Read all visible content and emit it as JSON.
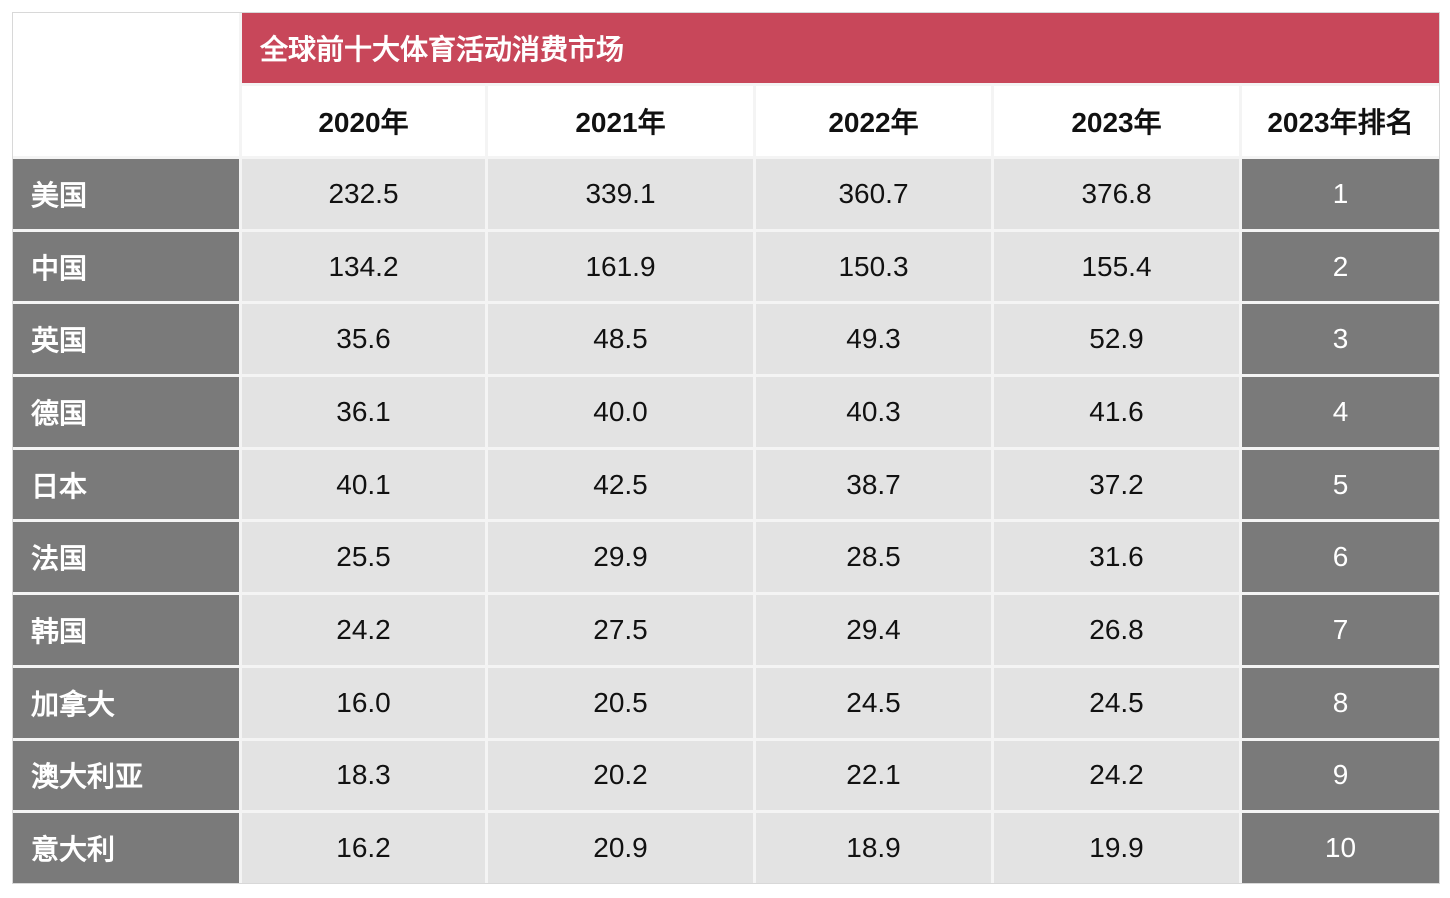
{
  "table": {
    "title": "全球前十大体育活动消费市场",
    "columns": [
      "2020年",
      "2021年",
      "2022年",
      "2023年",
      "2023年排名"
    ],
    "rows": [
      [
        "美国",
        "232.5",
        "339.1",
        "360.7",
        "376.8",
        "1"
      ],
      [
        "中国",
        "134.2",
        "161.9",
        "150.3",
        "155.4",
        "2"
      ],
      [
        "英国",
        "35.6",
        "48.5",
        "49.3",
        "52.9",
        "3"
      ],
      [
        "德国",
        "36.1",
        "40.0",
        "40.3",
        "41.6",
        "4"
      ],
      [
        "日本",
        "40.1",
        "42.5",
        "38.7",
        "37.2",
        "5"
      ],
      [
        "法国",
        "25.5",
        "29.9",
        "28.5",
        "31.6",
        "6"
      ],
      [
        "韩国",
        "24.2",
        "27.5",
        "29.4",
        "26.8",
        "7"
      ],
      [
        "加拿大",
        "16.0",
        "20.5",
        "24.5",
        "24.5",
        "8"
      ],
      [
        "澳大利亚",
        "18.3",
        "20.2",
        "22.1",
        "24.2",
        "9"
      ],
      [
        "意大利",
        "16.2",
        "20.9",
        "18.9",
        "19.9",
        "10"
      ]
    ]
  }
}
